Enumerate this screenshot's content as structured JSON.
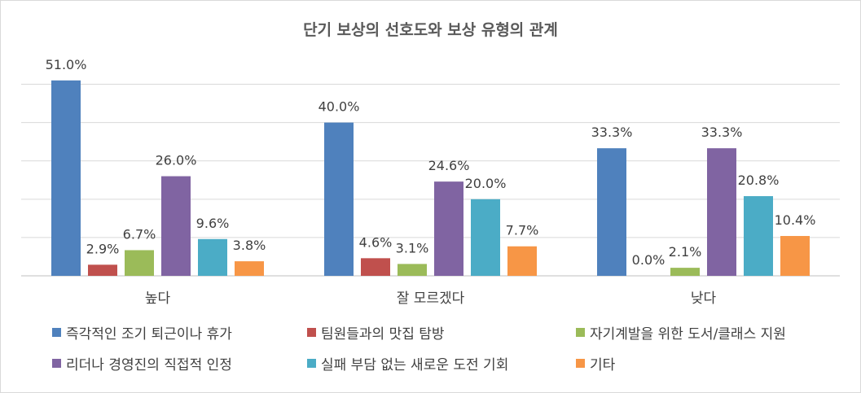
{
  "chart_data": {
    "type": "bar",
    "title": "단기 보상의 선호도와 보상 유형의 관계",
    "categories": [
      "높다",
      "잘 모르겠다",
      "낮다"
    ],
    "ylim": [
      0,
      55
    ],
    "grid": true,
    "legend_position": "bottom",
    "series": [
      {
        "name": "즉각적인 조기 퇴근이나 휴가",
        "color": "#4f81bd",
        "values": [
          51.0,
          40.0,
          33.3
        ],
        "labels": [
          "51.0%",
          "40.0%",
          "33.3%"
        ]
      },
      {
        "name": "팀원들과의 맛집 탐방",
        "color": "#c0504d",
        "values": [
          2.9,
          4.6,
          0.0
        ],
        "labels": [
          "2.9%",
          "4.6%",
          "0.0%"
        ]
      },
      {
        "name": "자기계발을 위한 도서/클래스 지원",
        "color": "#9bbb59",
        "values": [
          6.7,
          3.1,
          2.1
        ],
        "labels": [
          "6.7%",
          "3.1%",
          "2.1%"
        ]
      },
      {
        "name": "리더나 경영진의 직접적 인정",
        "color": "#8064a2",
        "values": [
          26.0,
          24.6,
          33.3
        ],
        "labels": [
          "26.0%",
          "24.6%",
          "33.3%"
        ]
      },
      {
        "name": "실패 부담 없는 새로운 도전 기회",
        "color": "#4bacc6",
        "values": [
          9.6,
          20.0,
          20.8
        ],
        "labels": [
          "9.6%",
          "20.0%",
          "20.8%"
        ]
      },
      {
        "name": "기타",
        "color": "#f79646",
        "values": [
          3.8,
          7.7,
          10.4
        ],
        "labels": [
          "3.8%",
          "7.7%",
          "10.4%"
        ]
      }
    ]
  }
}
